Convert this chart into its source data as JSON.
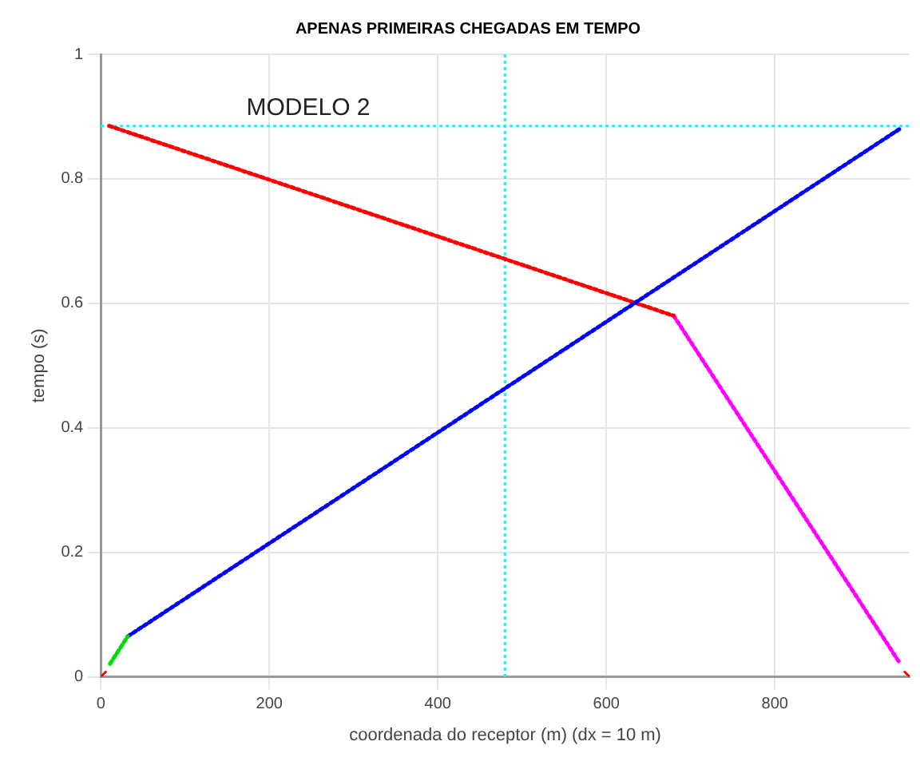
{
  "chart_data": {
    "type": "line",
    "title": "APENAS PRIMEIRAS CHEGADAS EM TEMPO",
    "xlabel": "coordenada do receptor (m) (dx = 10 m)",
    "ylabel": "tempo (s)",
    "annotations": [
      "MODELO 2"
    ],
    "xlim": [
      0,
      960
    ],
    "xticks": [
      0,
      200,
      400,
      600,
      800
    ],
    "ylim": [
      0,
      1
    ],
    "yticks": [
      0,
      0.2,
      0.4,
      0.6,
      0.8,
      1
    ],
    "grid": true,
    "legend": false,
    "line_style": "dotted",
    "series": [
      {
        "color": "#00dd00",
        "x": [
          11,
          32
        ],
        "values": [
          0.021,
          0.065
        ]
      },
      {
        "color": "#0000ff",
        "x": [
          32,
          948
        ],
        "values": [
          0.065,
          0.88
        ]
      },
      {
        "color": "#ff0000",
        "x": [
          10,
          680
        ],
        "values": [
          0.885,
          0.58
        ]
      },
      {
        "color": "#ff00ff",
        "x": [
          680,
          948
        ],
        "values": [
          0.58,
          0.023
        ]
      },
      {
        "type": "scatter",
        "marker": "cross",
        "color": "#ff0000",
        "x": [
          0,
          960
        ],
        "values": [
          0,
          0
        ]
      }
    ],
    "ref_lines": [
      {
        "axis": "y",
        "value": 0.885,
        "color": "#00ffff",
        "line_style": "dotted"
      },
      {
        "axis": "x",
        "value": 480,
        "color": "#00ffff",
        "line_style": "dotted"
      }
    ]
  }
}
